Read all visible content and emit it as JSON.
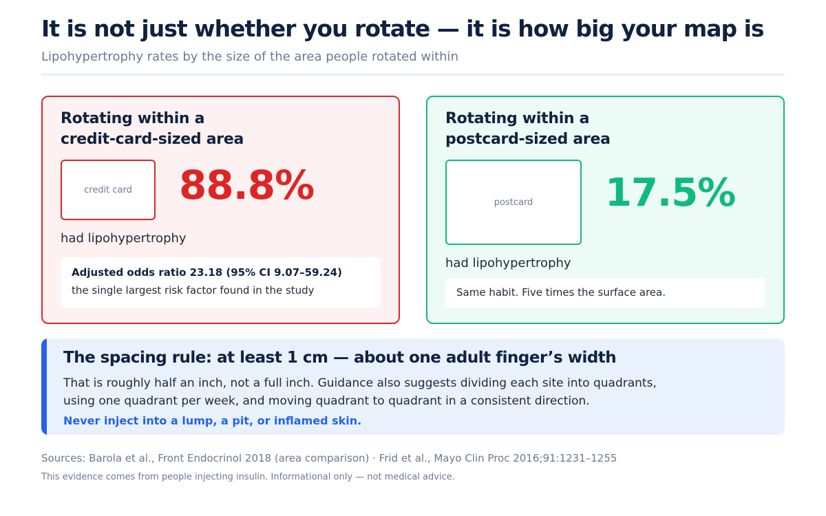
{
  "header": {
    "title": "It is not just whether you rotate — it is how big your map is",
    "subtitle": "Lipohypertrophy rates by the size of the area people rotated within"
  },
  "comparisons": [
    {
      "heading_line1": "Rotating within a",
      "heading_line2": "credit-card-sized area",
      "shape_label": "credit card",
      "rate": "88.8%",
      "outcome": "had lipohypertrophy",
      "note_strong": "Adjusted odds ratio 23.18 (95% CI 9.07–59.24)",
      "note_text": "the single largest risk factor found in the study",
      "accent": "#dc2626"
    },
    {
      "heading_line1": "Rotating within a",
      "heading_line2": "postcard-sized area",
      "shape_label": "postcard",
      "rate": "17.5%",
      "outcome": "had lipohypertrophy",
      "note_text": "Same habit. Five times the surface area.",
      "accent": "#10b981"
    }
  ],
  "spacing_rule": {
    "title": "The spacing rule: at least 1 cm — about one adult finger’s width",
    "body": "That is roughly half an inch, not a full inch. Guidance also suggests dividing each site into quadrants, using one quadrant per week, and moving quadrant to quadrant in a consistent direction.",
    "warning": "Never inject into a lump, a pit, or inflamed skin.",
    "accent": "#2563eb"
  },
  "footer": {
    "sources": "Sources: Barola et al., Front Endocrinol 2018 (area comparison) · Frid et al., Mayo Clin Proc 2016;91:1231–1255",
    "disclaimer": "This evidence comes from people injecting insulin. Informational only — not medical advice."
  }
}
